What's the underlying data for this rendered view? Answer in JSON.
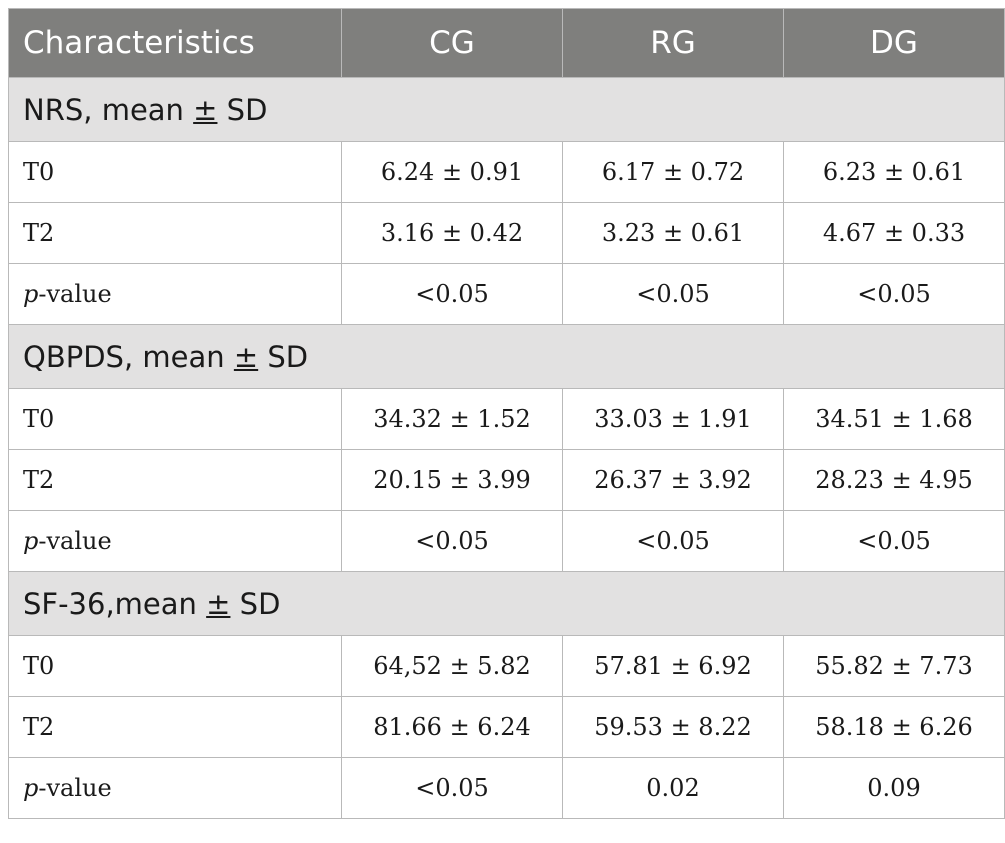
{
  "header": {
    "characteristics": "Characteristics",
    "cg": "CG",
    "rg": "RG",
    "dg": "DG"
  },
  "sections": [
    {
      "title": "NRS, mean ± SD",
      "rows": [
        {
          "label": "T0",
          "cg": "6.24 ± 0.91",
          "rg": "6.17 ± 0.72",
          "dg": "6.23 ± 0.61"
        },
        {
          "label": "T2",
          "cg": "3.16 ± 0.42",
          "rg": "3.23 ± 0.61",
          "dg": "4.67 ± 0.33"
        },
        {
          "label_italic": "p",
          "label_rest": "-value",
          "cg": "<0.05",
          "rg": "<0.05",
          "dg": "<0.05"
        }
      ]
    },
    {
      "title": "QBPDS, mean ± SD",
      "rows": [
        {
          "label": "T0",
          "cg": "34.32 ± 1.52",
          "rg": "33.03 ± 1.91",
          "dg": "34.51 ± 1.68"
        },
        {
          "label": "T2",
          "cg": "20.15 ± 3.99",
          "rg": "26.37 ± 3.92",
          "dg": "28.23 ± 4.95"
        },
        {
          "label_italic": "p",
          "label_rest": "-value",
          "cg": "<0.05",
          "rg": "<0.05",
          "dg": "<0.05"
        }
      ]
    },
    {
      "title": "SF-36,mean ± SD",
      "rows": [
        {
          "label": "T0",
          "cg": "64,52 ± 5.82",
          "rg": "57.81 ± 6.92",
          "dg": "55.82 ± 7.73"
        },
        {
          "label": "T2",
          "cg": "81.66 ± 6.24",
          "rg": "59.53 ± 8.22",
          "dg": "58.18 ± 6.26"
        },
        {
          "label_italic": "p",
          "label_rest": "-value",
          "cg": "<0.05",
          "rg": "0.02",
          "dg": "0.09"
        }
      ]
    }
  ]
}
